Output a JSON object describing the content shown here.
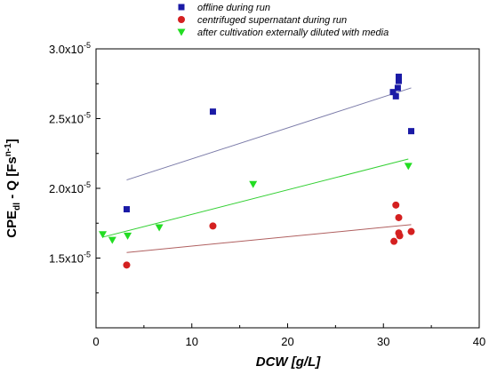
{
  "chart_data": {
    "type": "scatter",
    "xlabel": "DCW [g/L]",
    "ylabel": {
      "main": "CPE",
      "sub": "dl",
      "mid": " - Q [Fs",
      "sup": "n-1",
      "end": "]"
    },
    "xlim": [
      0,
      40
    ],
    "ylim": [
      1e-05,
      3e-05
    ],
    "x_ticks": [
      0,
      10,
      20,
      30,
      40
    ],
    "x_tick_labels": [
      "0",
      "10",
      "20",
      "30",
      "40"
    ],
    "y_ticks": [
      1.5e-05,
      2e-05,
      2.5e-05,
      3e-05
    ],
    "y_tick_labels": [
      {
        "mantissa": "1.5x10",
        "exponent": "-5"
      },
      {
        "mantissa": "2.0x10",
        "exponent": "-5"
      },
      {
        "mantissa": "2.5x10",
        "exponent": "-5"
      },
      {
        "mantissa": "3.0x10",
        "exponent": "-5"
      }
    ],
    "grid": false,
    "legend_position": "top-left",
    "series": [
      {
        "name": "offline during run",
        "marker": "square",
        "color": "#1a1aa6",
        "points": [
          {
            "x": 3.2,
            "y": 1.85e-05
          },
          {
            "x": 12.2,
            "y": 2.55e-05
          },
          {
            "x": 31.0,
            "y": 2.69e-05
          },
          {
            "x": 31.3,
            "y": 2.66e-05
          },
          {
            "x": 31.5,
            "y": 2.72e-05
          },
          {
            "x": 31.6,
            "y": 2.77e-05
          },
          {
            "x": 31.6,
            "y": 2.8e-05
          },
          {
            "x": 32.9,
            "y": 2.41e-05
          }
        ],
        "fit": {
          "x": [
            3.2,
            32.9
          ],
          "y": [
            2.06e-05,
            2.72e-05
          ],
          "color": "#7a7aa8"
        }
      },
      {
        "name": "centrifuged supernatant during run",
        "marker": "circle",
        "color": "#d42020",
        "points": [
          {
            "x": 3.2,
            "y": 1.45e-05
          },
          {
            "x": 12.2,
            "y": 1.73e-05
          },
          {
            "x": 31.1,
            "y": 1.62e-05
          },
          {
            "x": 31.3,
            "y": 1.88e-05
          },
          {
            "x": 31.6,
            "y": 1.79e-05
          },
          {
            "x": 31.6,
            "y": 1.68e-05
          },
          {
            "x": 31.7,
            "y": 1.66e-05
          },
          {
            "x": 32.9,
            "y": 1.69e-05
          }
        ],
        "fit": {
          "x": [
            3.2,
            32.9
          ],
          "y": [
            1.54e-05,
            1.74e-05
          ],
          "color": "#b06060"
        }
      },
      {
        "name": "after cultivation externally diluted with media",
        "marker": "triangle-down",
        "color": "#22dd22",
        "points": [
          {
            "x": 0.7,
            "y": 1.67e-05
          },
          {
            "x": 1.7,
            "y": 1.63e-05
          },
          {
            "x": 3.3,
            "y": 1.66e-05
          },
          {
            "x": 6.6,
            "y": 1.72e-05
          },
          {
            "x": 16.4,
            "y": 2.03e-05
          },
          {
            "x": 32.6,
            "y": 2.16e-05
          }
        ],
        "fit": {
          "x": [
            0.7,
            32.6
          ],
          "y": [
            1.65e-05,
            2.21e-05
          ],
          "color": "#33d033"
        }
      }
    ]
  }
}
